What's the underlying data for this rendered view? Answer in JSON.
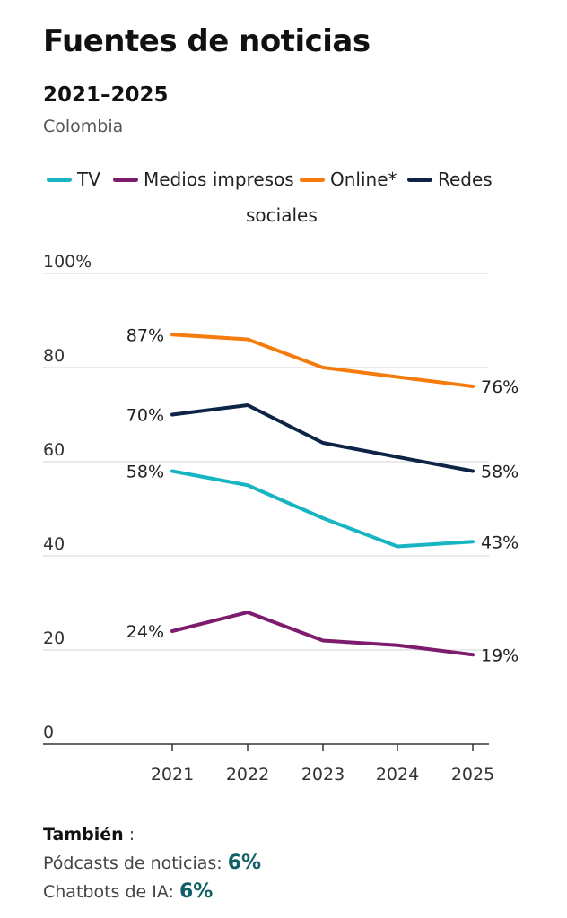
{
  "chart_data": {
    "type": "line",
    "title": "Fuentes de noticias",
    "subtitle": "2021–2025",
    "region": "Colombia",
    "x": [
      "2021",
      "2022",
      "2023",
      "2024",
      "2025"
    ],
    "ylim": [
      0,
      100
    ],
    "yticks": [
      0,
      20,
      40,
      60,
      80,
      100
    ],
    "ytick_labels": [
      "0",
      "20",
      "40",
      "60",
      "80",
      "100%"
    ],
    "grid": true,
    "legend_position": "top",
    "series": [
      {
        "name": "TV",
        "color": "#17b5c2",
        "values": [
          58,
          55,
          48,
          42,
          43
        ],
        "start_label": "58%",
        "end_label": "43%"
      },
      {
        "name": "Medios impresos",
        "color": "#7d1b6c",
        "values": [
          24,
          28,
          22,
          21,
          19
        ],
        "start_label": "24%",
        "end_label": "19%"
      },
      {
        "name": "Online*",
        "color": "#f57c0c",
        "values": [
          87,
          86,
          80,
          78,
          76
        ],
        "start_label": "87%",
        "end_label": "76%"
      },
      {
        "name": "Redes sociales",
        "name_line1": "Redes",
        "name_line2": "sociales",
        "color": "#0d2447",
        "values": [
          70,
          72,
          64,
          61,
          58
        ],
        "start_label": "70%",
        "end_label": "58%"
      }
    ]
  },
  "footer": {
    "heading": "También",
    "colon": " :",
    "items": [
      {
        "label": "Pódcasts de noticias: ",
        "value": "6%"
      },
      {
        "label": "Chatbots de IA: ",
        "value": "6%"
      }
    ]
  }
}
